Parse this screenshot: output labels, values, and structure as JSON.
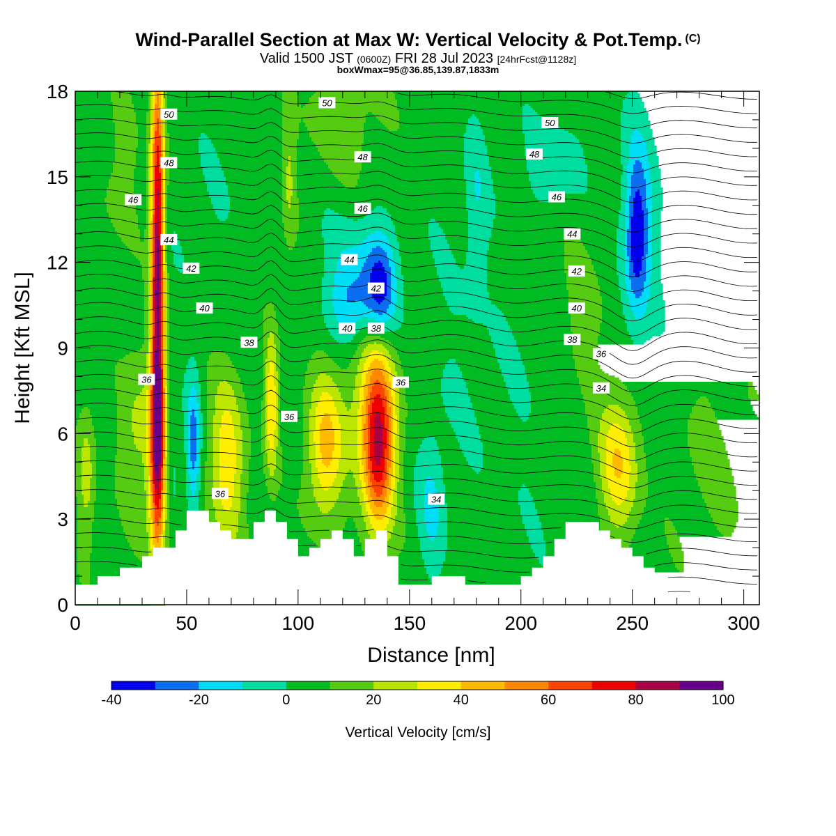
{
  "header": {
    "title": "Wind-Parallel Section at Max W: Vertical Velocity & Pot.Temp.",
    "title_suffix": "(C)",
    "valid_label": "Valid 1500 JST",
    "valid_utc": "(0600Z)",
    "valid_date": "FRI 28 Jul 2023",
    "forecast_info": "[24hrFcst@1128z]",
    "box_info": "boxWmax=95@36.85,139.87,1833m"
  },
  "chart_data": {
    "type": "heatmap",
    "xlabel": "Distance [nm]",
    "ylabel": "Height [Kft MSL]",
    "xlim": [
      0,
      307
    ],
    "ylim": [
      0,
      18
    ],
    "x_ticks": [
      0,
      50,
      100,
      150,
      200,
      250,
      300
    ],
    "y_ticks": [
      0,
      3,
      6,
      9,
      12,
      15,
      18
    ],
    "colorbar": {
      "label": "Vertical Velocity [cm/s]",
      "bounds": [
        -40,
        -30,
        -20,
        -10,
        0,
        10,
        20,
        30,
        40,
        50,
        60,
        70,
        80,
        90,
        100
      ],
      "tick_labels": [
        "-40",
        "-20",
        "0",
        "20",
        "40",
        "60",
        "80",
        "100"
      ],
      "colors": [
        "#0000ee",
        "#0b6ef0",
        "#00ddf7",
        "#00dda0",
        "#00bb22",
        "#55cc11",
        "#bbe600",
        "#ffee00",
        "#ffbb00",
        "#ff8800",
        "#ff4400",
        "#ee0000",
        "#aa0044",
        "#660088"
      ]
    },
    "background_value": 5,
    "features": [
      {
        "x": 37,
        "z": 12,
        "dx": 3,
        "dz": 7.5,
        "w": 88
      },
      {
        "x": 37,
        "z": 5,
        "dx": 4,
        "dz": 3.5,
        "w": 55
      },
      {
        "x": 136,
        "z": 5.5,
        "dx": 7,
        "dz": 3,
        "w": 65
      },
      {
        "x": 133,
        "z": 7,
        "dx": 12,
        "dz": 3,
        "w": 22
      },
      {
        "x": 112,
        "z": 5.5,
        "dx": 8,
        "dz": 2.5,
        "w": 38
      },
      {
        "x": 68,
        "z": 5,
        "dx": 8,
        "dz": 3,
        "w": 32
      },
      {
        "x": 88,
        "z": 7,
        "dx": 3,
        "dz": 2.5,
        "w": 35
      },
      {
        "x": 244,
        "z": 5,
        "dx": 9,
        "dz": 2.5,
        "w": 35
      },
      {
        "x": 28,
        "z": 6,
        "dx": 8,
        "dz": 3,
        "w": 18
      },
      {
        "x": 5,
        "z": 4.5,
        "dx": 4,
        "dz": 2.5,
        "w": 20
      },
      {
        "x": 96,
        "z": 15,
        "dx": 3,
        "dz": 2.5,
        "w": 15
      },
      {
        "x": 137,
        "z": 11,
        "dx": 7,
        "dz": 1.8,
        "w": -35
      },
      {
        "x": 124,
        "z": 10.5,
        "dx": 11,
        "dz": 1.4,
        "w": -25
      },
      {
        "x": 127,
        "z": 12.3,
        "dx": 15,
        "dz": 1.6,
        "w": -12
      },
      {
        "x": 252,
        "z": 13,
        "dx": 5,
        "dz": 2.6,
        "w": -32
      },
      {
        "x": 253,
        "z": 13,
        "dx": 9,
        "dz": 4.5,
        "w": -14
      },
      {
        "x": 215,
        "z": 15.5,
        "dx": 13,
        "dz": 1.6,
        "w": -12
      },
      {
        "x": 180,
        "z": 14,
        "dx": 5,
        "dz": 3,
        "w": -12
      },
      {
        "x": 53,
        "z": 5.5,
        "dx": 3,
        "dz": 2.3,
        "w": -30
      },
      {
        "x": 160,
        "z": 3.5,
        "dx": 6,
        "dz": 2.5,
        "w": -15
      },
      {
        "x": 43,
        "z": 5,
        "dx": 4,
        "dz": 2,
        "w": -12
      },
      {
        "x": 285,
        "z": 5,
        "dx": 18,
        "dz": 4,
        "w": 7
      },
      {
        "x": 205,
        "z": 7,
        "dx": 22,
        "dz": 6,
        "w": -4
      },
      {
        "x": 170,
        "z": 9,
        "dx": 18,
        "dz": 6,
        "w": -4
      },
      {
        "x": 60,
        "z": 13,
        "dx": 20,
        "dz": 4,
        "w": -4
      },
      {
        "x": 120,
        "z": 17,
        "dx": 18,
        "dz": 2,
        "w": 12
      },
      {
        "x": 20,
        "z": 15,
        "dx": 10,
        "dz": 3,
        "w": 8
      },
      {
        "x": 225,
        "z": 10,
        "dx": 15,
        "dz": 3,
        "w": 9
      }
    ],
    "terrain_kft": [
      [
        0,
        0.7
      ],
      [
        9,
        0.7
      ],
      [
        10,
        1.0
      ],
      [
        19,
        1.0
      ],
      [
        20,
        1.3
      ],
      [
        29,
        1.3
      ],
      [
        30,
        1.7
      ],
      [
        34,
        1.7
      ],
      [
        35,
        2.0
      ],
      [
        44,
        2.0
      ],
      [
        45,
        2.6
      ],
      [
        49,
        2.6
      ],
      [
        50,
        3.3
      ],
      [
        59,
        3.3
      ],
      [
        60,
        2.9
      ],
      [
        64,
        2.9
      ],
      [
        65,
        2.6
      ],
      [
        69,
        2.6
      ],
      [
        70,
        2.3
      ],
      [
        79,
        2.3
      ],
      [
        80,
        2.9
      ],
      [
        84,
        2.9
      ],
      [
        85,
        3.3
      ],
      [
        89,
        3.3
      ],
      [
        90,
        2.9
      ],
      [
        94,
        2.9
      ],
      [
        95,
        2.3
      ],
      [
        99,
        2.3
      ],
      [
        100,
        1.7
      ],
      [
        104,
        1.7
      ],
      [
        105,
        2.0
      ],
      [
        109,
        2.0
      ],
      [
        110,
        2.3
      ],
      [
        114,
        2.3
      ],
      [
        115,
        2.6
      ],
      [
        119,
        2.6
      ],
      [
        120,
        2.3
      ],
      [
        124,
        2.3
      ],
      [
        125,
        1.7
      ],
      [
        129,
        1.7
      ],
      [
        130,
        2.3
      ],
      [
        134,
        2.3
      ],
      [
        135,
        2.6
      ],
      [
        139,
        2.6
      ],
      [
        140,
        1.7
      ],
      [
        144,
        1.7
      ],
      [
        145,
        0.7
      ],
      [
        159,
        0.7
      ],
      [
        160,
        1.0
      ],
      [
        174,
        1.0
      ],
      [
        175,
        0.7
      ],
      [
        199,
        0.7
      ],
      [
        200,
        1.0
      ],
      [
        204,
        1.0
      ],
      [
        205,
        1.3
      ],
      [
        209,
        1.3
      ],
      [
        210,
        1.7
      ],
      [
        214,
        1.7
      ],
      [
        215,
        2.3
      ],
      [
        219,
        2.3
      ],
      [
        220,
        2.9
      ],
      [
        234,
        2.9
      ],
      [
        235,
        2.6
      ],
      [
        239,
        2.6
      ],
      [
        240,
        2.3
      ],
      [
        244,
        2.3
      ],
      [
        245,
        2.0
      ],
      [
        249,
        2.0
      ],
      [
        250,
        1.7
      ],
      [
        254,
        1.7
      ],
      [
        255,
        1.3
      ],
      [
        259,
        1.3
      ],
      [
        260,
        1.0
      ],
      [
        264,
        1.0
      ],
      [
        265,
        0.4
      ],
      [
        307,
        0.4
      ]
    ],
    "theta_contour_labels": [
      {
        "text": "50",
        "x": 42,
        "z": 17.2
      },
      {
        "text": "48",
        "x": 42,
        "z": 15.5
      },
      {
        "text": "46",
        "x": 26,
        "z": 14.2
      },
      {
        "text": "44",
        "x": 42,
        "z": 12.8
      },
      {
        "text": "42",
        "x": 52,
        "z": 11.8
      },
      {
        "text": "40",
        "x": 58,
        "z": 10.4
      },
      {
        "text": "38",
        "x": 78,
        "z": 9.2
      },
      {
        "text": "36",
        "x": 32,
        "z": 7.9
      },
      {
        "text": "36",
        "x": 96,
        "z": 6.6
      },
      {
        "text": "36",
        "x": 65,
        "z": 3.9
      },
      {
        "text": "50",
        "x": 113,
        "z": 17.6
      },
      {
        "text": "48",
        "x": 129,
        "z": 15.7
      },
      {
        "text": "46",
        "x": 129,
        "z": 13.9
      },
      {
        "text": "44",
        "x": 123,
        "z": 12.1
      },
      {
        "text": "42",
        "x": 135,
        "z": 11.1
      },
      {
        "text": "40",
        "x": 122,
        "z": 9.7
      },
      {
        "text": "38",
        "x": 135,
        "z": 9.7
      },
      {
        "text": "36",
        "x": 146,
        "z": 7.8
      },
      {
        "text": "34",
        "x": 162,
        "z": 3.7
      },
      {
        "text": "50",
        "x": 213,
        "z": 16.9
      },
      {
        "text": "48",
        "x": 206,
        "z": 15.8
      },
      {
        "text": "46",
        "x": 216,
        "z": 14.3
      },
      {
        "text": "44",
        "x": 223,
        "z": 13.0
      },
      {
        "text": "42",
        "x": 225,
        "z": 11.7
      },
      {
        "text": "40",
        "x": 225,
        "z": 10.4
      },
      {
        "text": "38",
        "x": 223,
        "z": 9.3
      },
      {
        "text": "36",
        "x": 236,
        "z": 8.8
      },
      {
        "text": "34",
        "x": 236,
        "z": 7.6
      }
    ]
  }
}
